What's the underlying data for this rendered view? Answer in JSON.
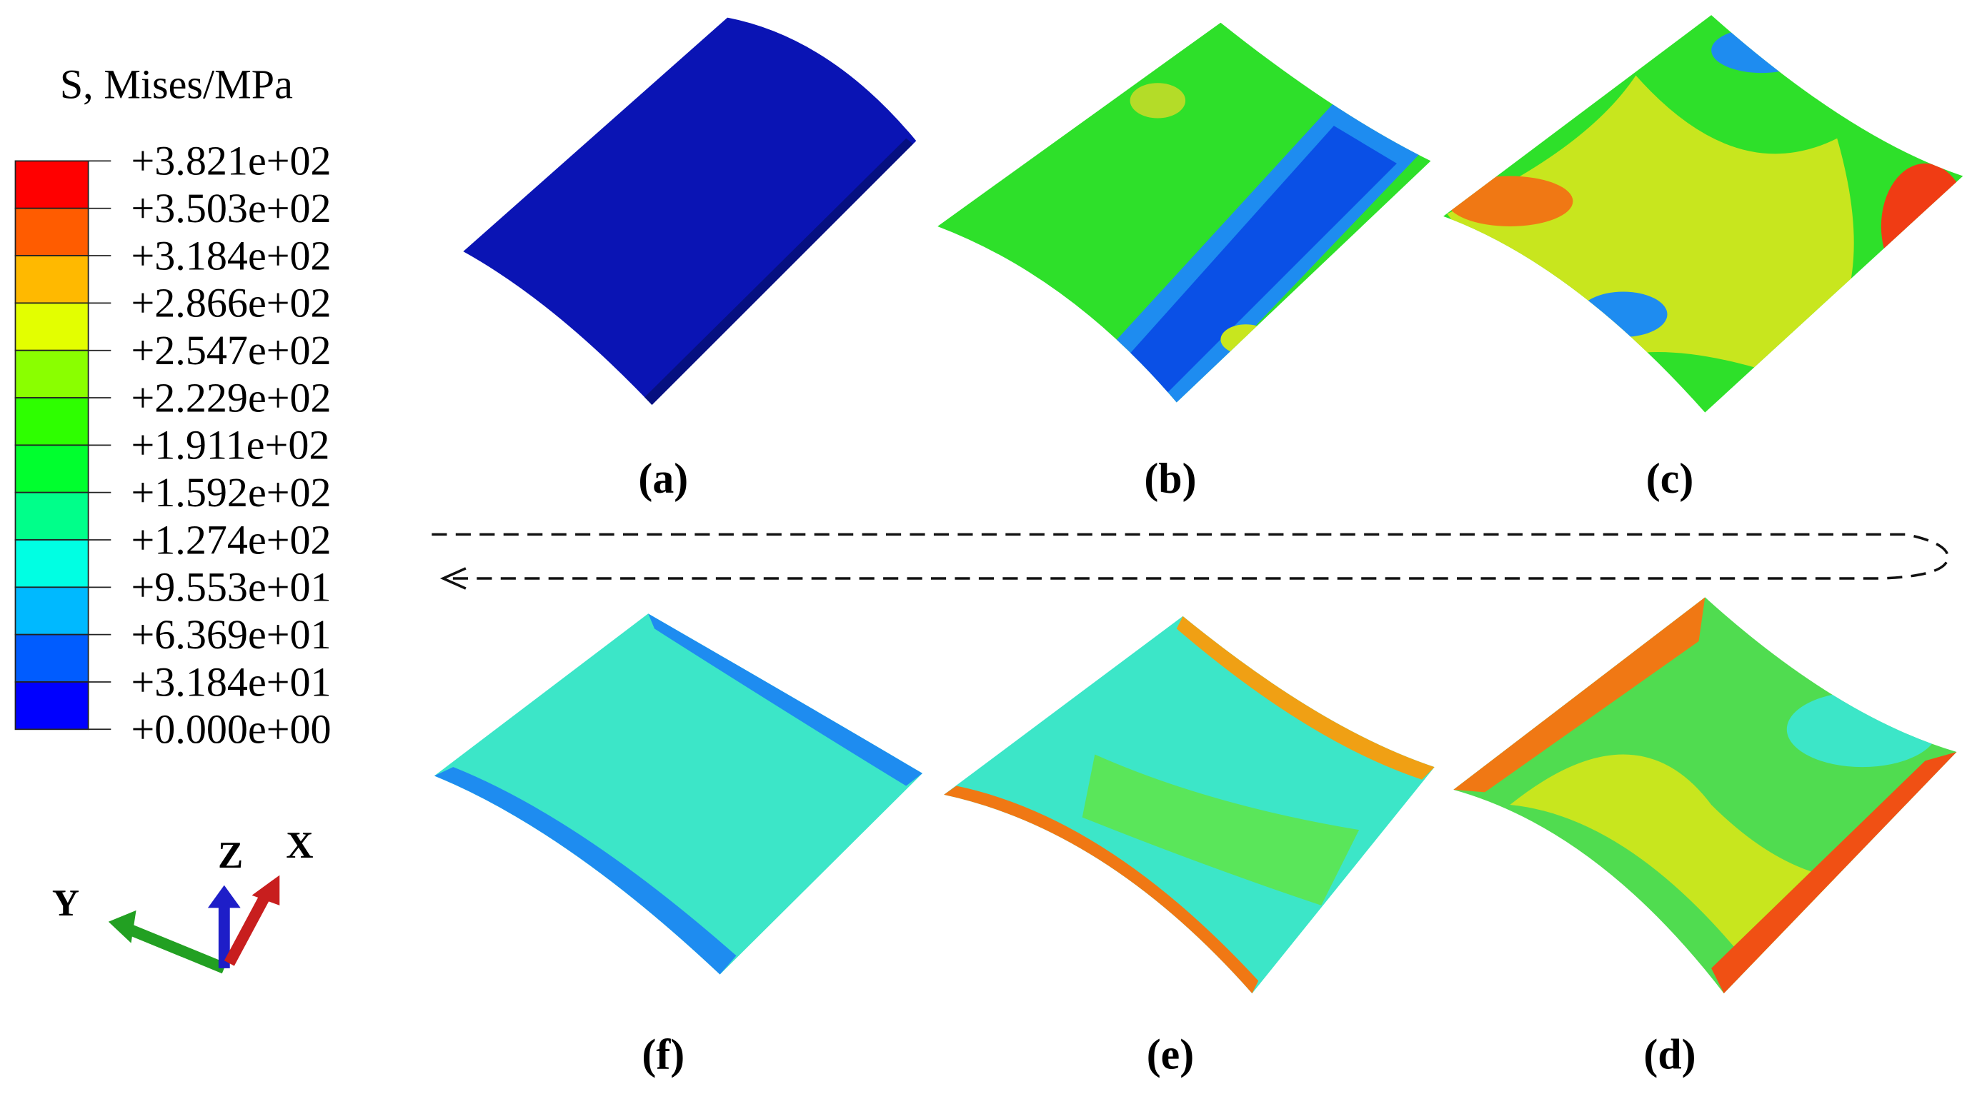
{
  "legend": {
    "title": "S, Mises/MPa",
    "labels": [
      "+3.821e+02",
      "+3.503e+02",
      "+3.184e+02",
      "+2.866e+02",
      "+2.547e+02",
      "+2.229e+02",
      "+1.911e+02",
      "+1.592e+02",
      "+1.274e+02",
      "+9.553e+01",
      "+6.369e+01",
      "+3.184e+01",
      "+0.000e+00"
    ],
    "colors": [
      "#ff0000",
      "#ff5c00",
      "#ffb900",
      "#e3ff00",
      "#8aff00",
      "#2eff00",
      "#00ff2e",
      "#00ff8a",
      "#00ffe3",
      "#00b9ff",
      "#005cff",
      "#0000ff"
    ]
  },
  "panels": [
    "(a)",
    "(b)",
    "(c)",
    "(d)",
    "(e)",
    "(f)"
  ],
  "triad": {
    "x": "X",
    "y": "Y",
    "z": "Z"
  }
}
